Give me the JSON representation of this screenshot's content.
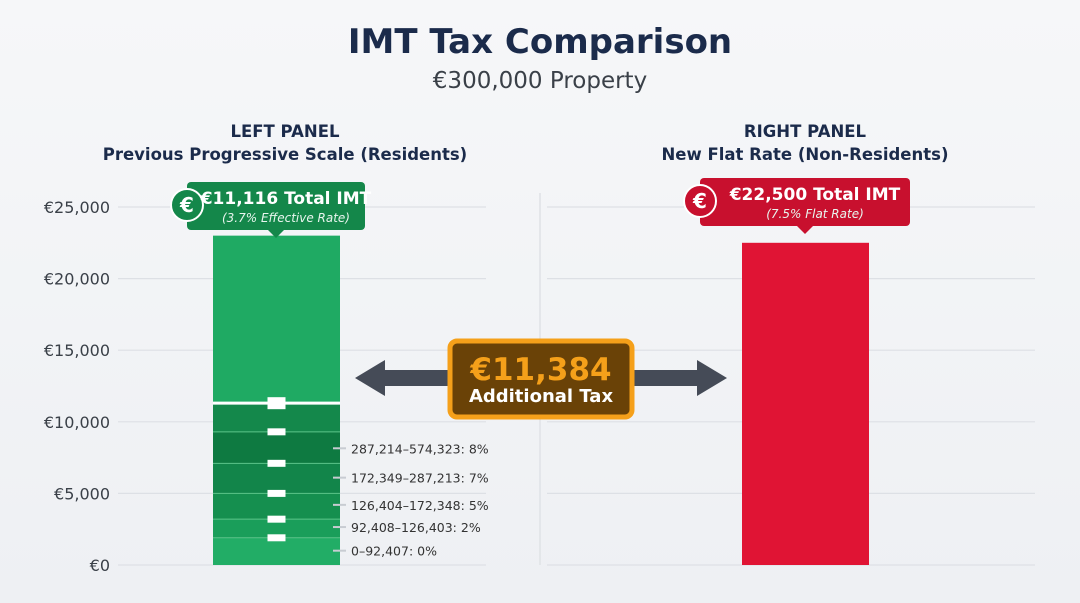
{
  "chart_data": {
    "type": "bar",
    "title": "IMT Tax Comparison",
    "subtitle": "€300,000 Property",
    "ylim": [
      0,
      25000
    ],
    "yticks": [
      0,
      5000,
      10000,
      15000,
      20000,
      25000
    ],
    "ytick_labels": [
      "€0",
      "€5,000",
      "€10,000",
      "€15,000",
      "€20,000",
      "€25,000"
    ],
    "panels": [
      {
        "heading": "LEFT PANEL",
        "subheading": "Previous Progressive Scale (Residents)",
        "category": "Residents",
        "value": 11116,
        "display_top": 23000,
        "label": "€11,116 Total IMT",
        "sublabel": "(3.7% Effective Rate)",
        "color": "#1faa63",
        "label_color": "#14874a",
        "brackets": [
          "287,214–574,323: 8%",
          "172,349–287,213: 7%",
          "126,404–172,348: 5%",
          "92,408–126,403: 2%",
          "0–92,407: 0%"
        ],
        "bands": [
          {
            "from": 0,
            "to": 1900,
            "color": "#22ad66",
            "label_at": 1000
          },
          {
            "from": 1900,
            "to": 3200,
            "color": "#1a9e5a",
            "label_at": 2650
          },
          {
            "from": 3200,
            "to": 5000,
            "color": "#158f4f",
            "label_at": 4200
          },
          {
            "from": 5000,
            "to": 7100,
            "color": "#12854a",
            "label_at": 6100
          },
          {
            "from": 7100,
            "to": 9300,
            "color": "#0e7a41",
            "label_at": 8150
          },
          {
            "from": 9300,
            "to": 11300,
            "color": "#14884b"
          },
          {
            "from": 11300,
            "to": 23000,
            "color": "#1faa63"
          }
        ]
      },
      {
        "heading": "RIGHT PANEL",
        "subheading": "New Flat Rate (Non-Residents)",
        "category": "Non-Residents",
        "value": 22500,
        "label": "€22,500 Total IMT",
        "sublabel": "(7.5% Flat Rate)",
        "color": "#e01434",
        "label_color": "#c8102e"
      }
    ],
    "annotation": {
      "value": "€11,384",
      "text": "Additional Tax",
      "difference": 11384
    }
  },
  "icons": {
    "currency": "euro-icon"
  }
}
